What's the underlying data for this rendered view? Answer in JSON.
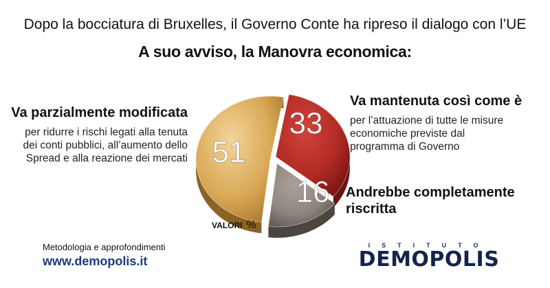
{
  "header": {
    "subtitle": "Dopo la bocciatura di Bruxelles, il Governo Conte ha ripreso il dialogo con l’UE",
    "title": "A suo avviso, la Manovra economica:"
  },
  "chart_data": {
    "type": "pie",
    "unit_label": "VALORI",
    "unit_symbol": "%",
    "slices": [
      {
        "value": 51,
        "label": "Va parzialmente modificata",
        "description": "per ridurre i rischi legati alla tenuta dei conti pubblici, all’aumento dello Spread e alla reazione dei mercati",
        "color": "#d9a957"
      },
      {
        "value": 33,
        "label": "Va mantenuta così come è",
        "description": "per l’attuazione di tutte le misure economiche previste dal programma di Governo",
        "color": "#b12a24"
      },
      {
        "value": 16,
        "label": "Andrebbe completamente riscritta",
        "description": "",
        "color": "#8e857c"
      }
    ]
  },
  "footer": {
    "methodology": "Metodologia e approfondimenti",
    "url": "www.demopolis.it",
    "brand_top": "ISTITUTO",
    "brand_main": "DEMOPOLIS"
  }
}
